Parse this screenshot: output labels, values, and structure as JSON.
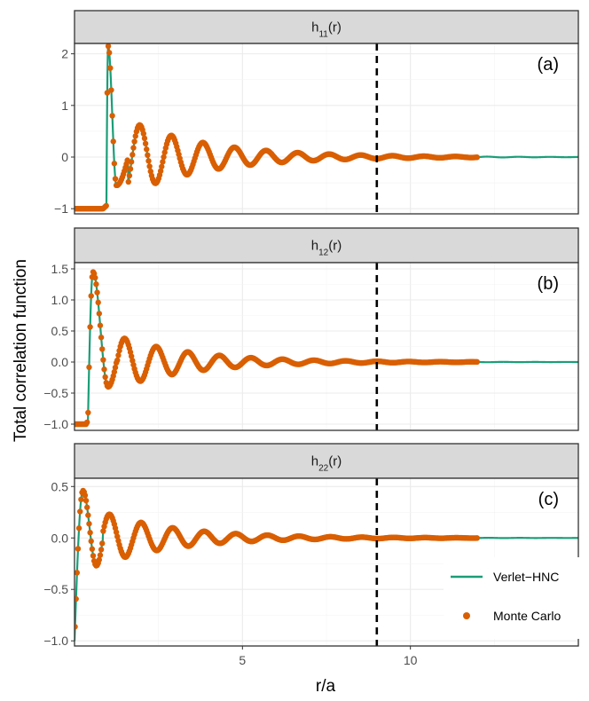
{
  "chart_data": {
    "type": "line",
    "x_label": "r/a",
    "y_label": "Total correlation function",
    "x_range": [
      0,
      15
    ],
    "x_ticks": [
      5,
      10
    ],
    "vline_x": 9,
    "mc_x_max": 12,
    "line_color": "#1b9e77",
    "point_color": "#d95f02",
    "legend": {
      "line_label": "Verlet−HNC",
      "points_label": "Monte Carlo",
      "position": "bottom-right"
    },
    "panels": [
      {
        "tag": "(a)",
        "strip": {
          "base": "h",
          "sub": "11",
          "suffix": "(r)"
        },
        "y_range": [
          -1.1,
          2.2
        ],
        "y_ticks": [
          -1,
          0,
          1,
          2
        ],
        "y_tick_labels": [
          "−1",
          "0",
          "1",
          "2"
        ],
        "core": {
          "r0": 0.85,
          "r1": 0.95,
          "rp": 1.0,
          "hp": 2.15,
          "rt": 1.25,
          "ht": -0.55
        },
        "osc": {
          "amp": 0.62,
          "r_first": 1.95,
          "period": 0.94,
          "decay": 0.42
        }
      },
      {
        "tag": "(b)",
        "strip": {
          "base": "h",
          "sub": "12",
          "suffix": "(r)"
        },
        "y_range": [
          -1.1,
          1.6
        ],
        "y_ticks": [
          -1,
          -0.5,
          0,
          0.5,
          1,
          1.5
        ],
        "y_tick_labels": [
          "−1.0",
          "−0.5",
          "0.0",
          "0.5",
          "1.0",
          "1.5"
        ],
        "core": {
          "r0": 0.35,
          "r1": 0.4,
          "rp": 0.55,
          "hp": 1.45,
          "rt": 1.0,
          "ht": -0.4
        },
        "osc": {
          "amp": 0.38,
          "r_first": 1.5,
          "period": 0.94,
          "decay": 0.45
        }
      },
      {
        "tag": "(c)",
        "strip": {
          "base": "h",
          "sub": "22",
          "suffix": "(r)"
        },
        "y_range": [
          -1.05,
          0.58
        ],
        "y_ticks": [
          -1,
          -0.5,
          0,
          0.5
        ],
        "y_tick_labels": [
          "−1.0",
          "−0.5",
          "0.0",
          "0.5"
        ],
        "core": {
          "r0": 0.0,
          "r1": 0.0,
          "rp": 0.25,
          "hp": 0.46,
          "rt": 0.65,
          "ht": -0.27
        },
        "osc": {
          "amp": 0.23,
          "r_first": 1.05,
          "period": 0.94,
          "decay": 0.45
        }
      }
    ]
  }
}
